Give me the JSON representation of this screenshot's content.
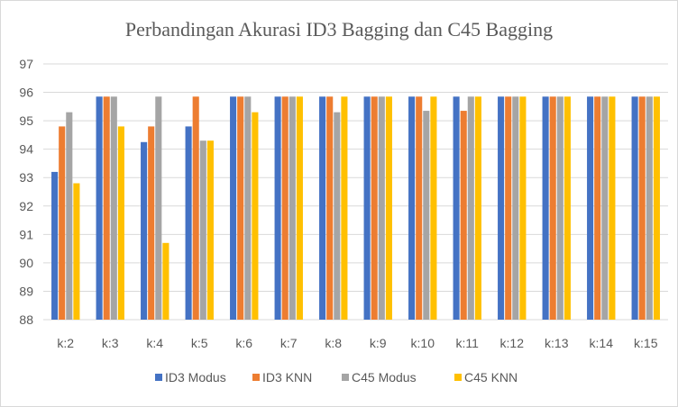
{
  "chart_data": {
    "type": "bar",
    "title": "Perbandingan Akurasi ID3 Bagging  dan C45 Bagging",
    "xlabel": "",
    "ylabel": "",
    "ylim": [
      88,
      97
    ],
    "yticks": [
      88,
      89,
      90,
      91,
      92,
      93,
      94,
      95,
      96,
      97
    ],
    "grid": true,
    "legend_position": "bottom",
    "categories": [
      "k:2",
      "k:3",
      "k:4",
      "k:5",
      "k:6",
      "k:7",
      "k:8",
      "k:9",
      "k:10",
      "k:11",
      "k:12",
      "k:13",
      "k:14",
      "k:15"
    ],
    "series": [
      {
        "name": "ID3 Modus",
        "color": "#4472c4",
        "values": [
          93.2,
          95.85,
          94.25,
          94.8,
          95.85,
          95.85,
          95.85,
          95.85,
          95.85,
          95.85,
          95.85,
          95.85,
          95.85,
          95.85
        ]
      },
      {
        "name": "ID3 KNN",
        "color": "#ed7d31",
        "values": [
          94.8,
          95.85,
          94.8,
          95.85,
          95.85,
          95.85,
          95.85,
          95.85,
          95.85,
          95.35,
          95.85,
          95.85,
          95.85,
          95.85
        ]
      },
      {
        "name": "C45 Modus",
        "color": "#a5a5a5",
        "values": [
          95.3,
          95.85,
          95.85,
          94.3,
          95.85,
          95.85,
          95.3,
          95.85,
          95.35,
          95.85,
          95.85,
          95.85,
          95.85,
          95.85
        ]
      },
      {
        "name": "C45 KNN",
        "color": "#ffc000",
        "values": [
          92.8,
          94.8,
          90.7,
          94.3,
          95.3,
          95.85,
          95.85,
          95.85,
          95.85,
          95.85,
          95.85,
          95.85,
          95.85,
          95.85
        ]
      }
    ]
  }
}
